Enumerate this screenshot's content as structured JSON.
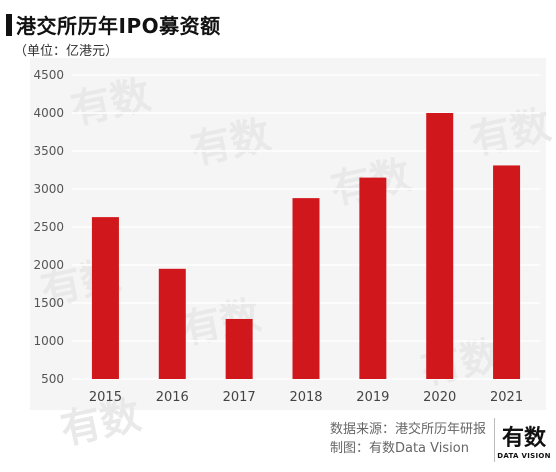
{
  "title": "港交所历年IPO募资额",
  "subtitle": "（单位：亿港元）",
  "footer": {
    "source": "数据来源：港交所历年研报",
    "credit": "制图：有数Data Vision"
  },
  "logo": {
    "main": "有数",
    "sub": "DATA VISION"
  },
  "watermark_text": "有数",
  "colors": {
    "bar": "#d0181c",
    "grid": "#ffffff",
    "plot_bg": "#f5f5f5"
  },
  "chart_data": {
    "type": "bar",
    "title": "港交所历年IPO募资额",
    "subtitle": "（单位：亿港元）",
    "xlabel": "",
    "ylabel": "",
    "categories": [
      "2015",
      "2016",
      "2017",
      "2018",
      "2019",
      "2020",
      "2021"
    ],
    "values": [
      2630,
      1950,
      1290,
      2880,
      3150,
      4000,
      3310
    ],
    "ylim": [
      500,
      4500
    ],
    "yticks": [
      500,
      1000,
      1500,
      2000,
      2500,
      3000,
      3500,
      4000,
      4500
    ],
    "grid": true,
    "legend": "none"
  }
}
